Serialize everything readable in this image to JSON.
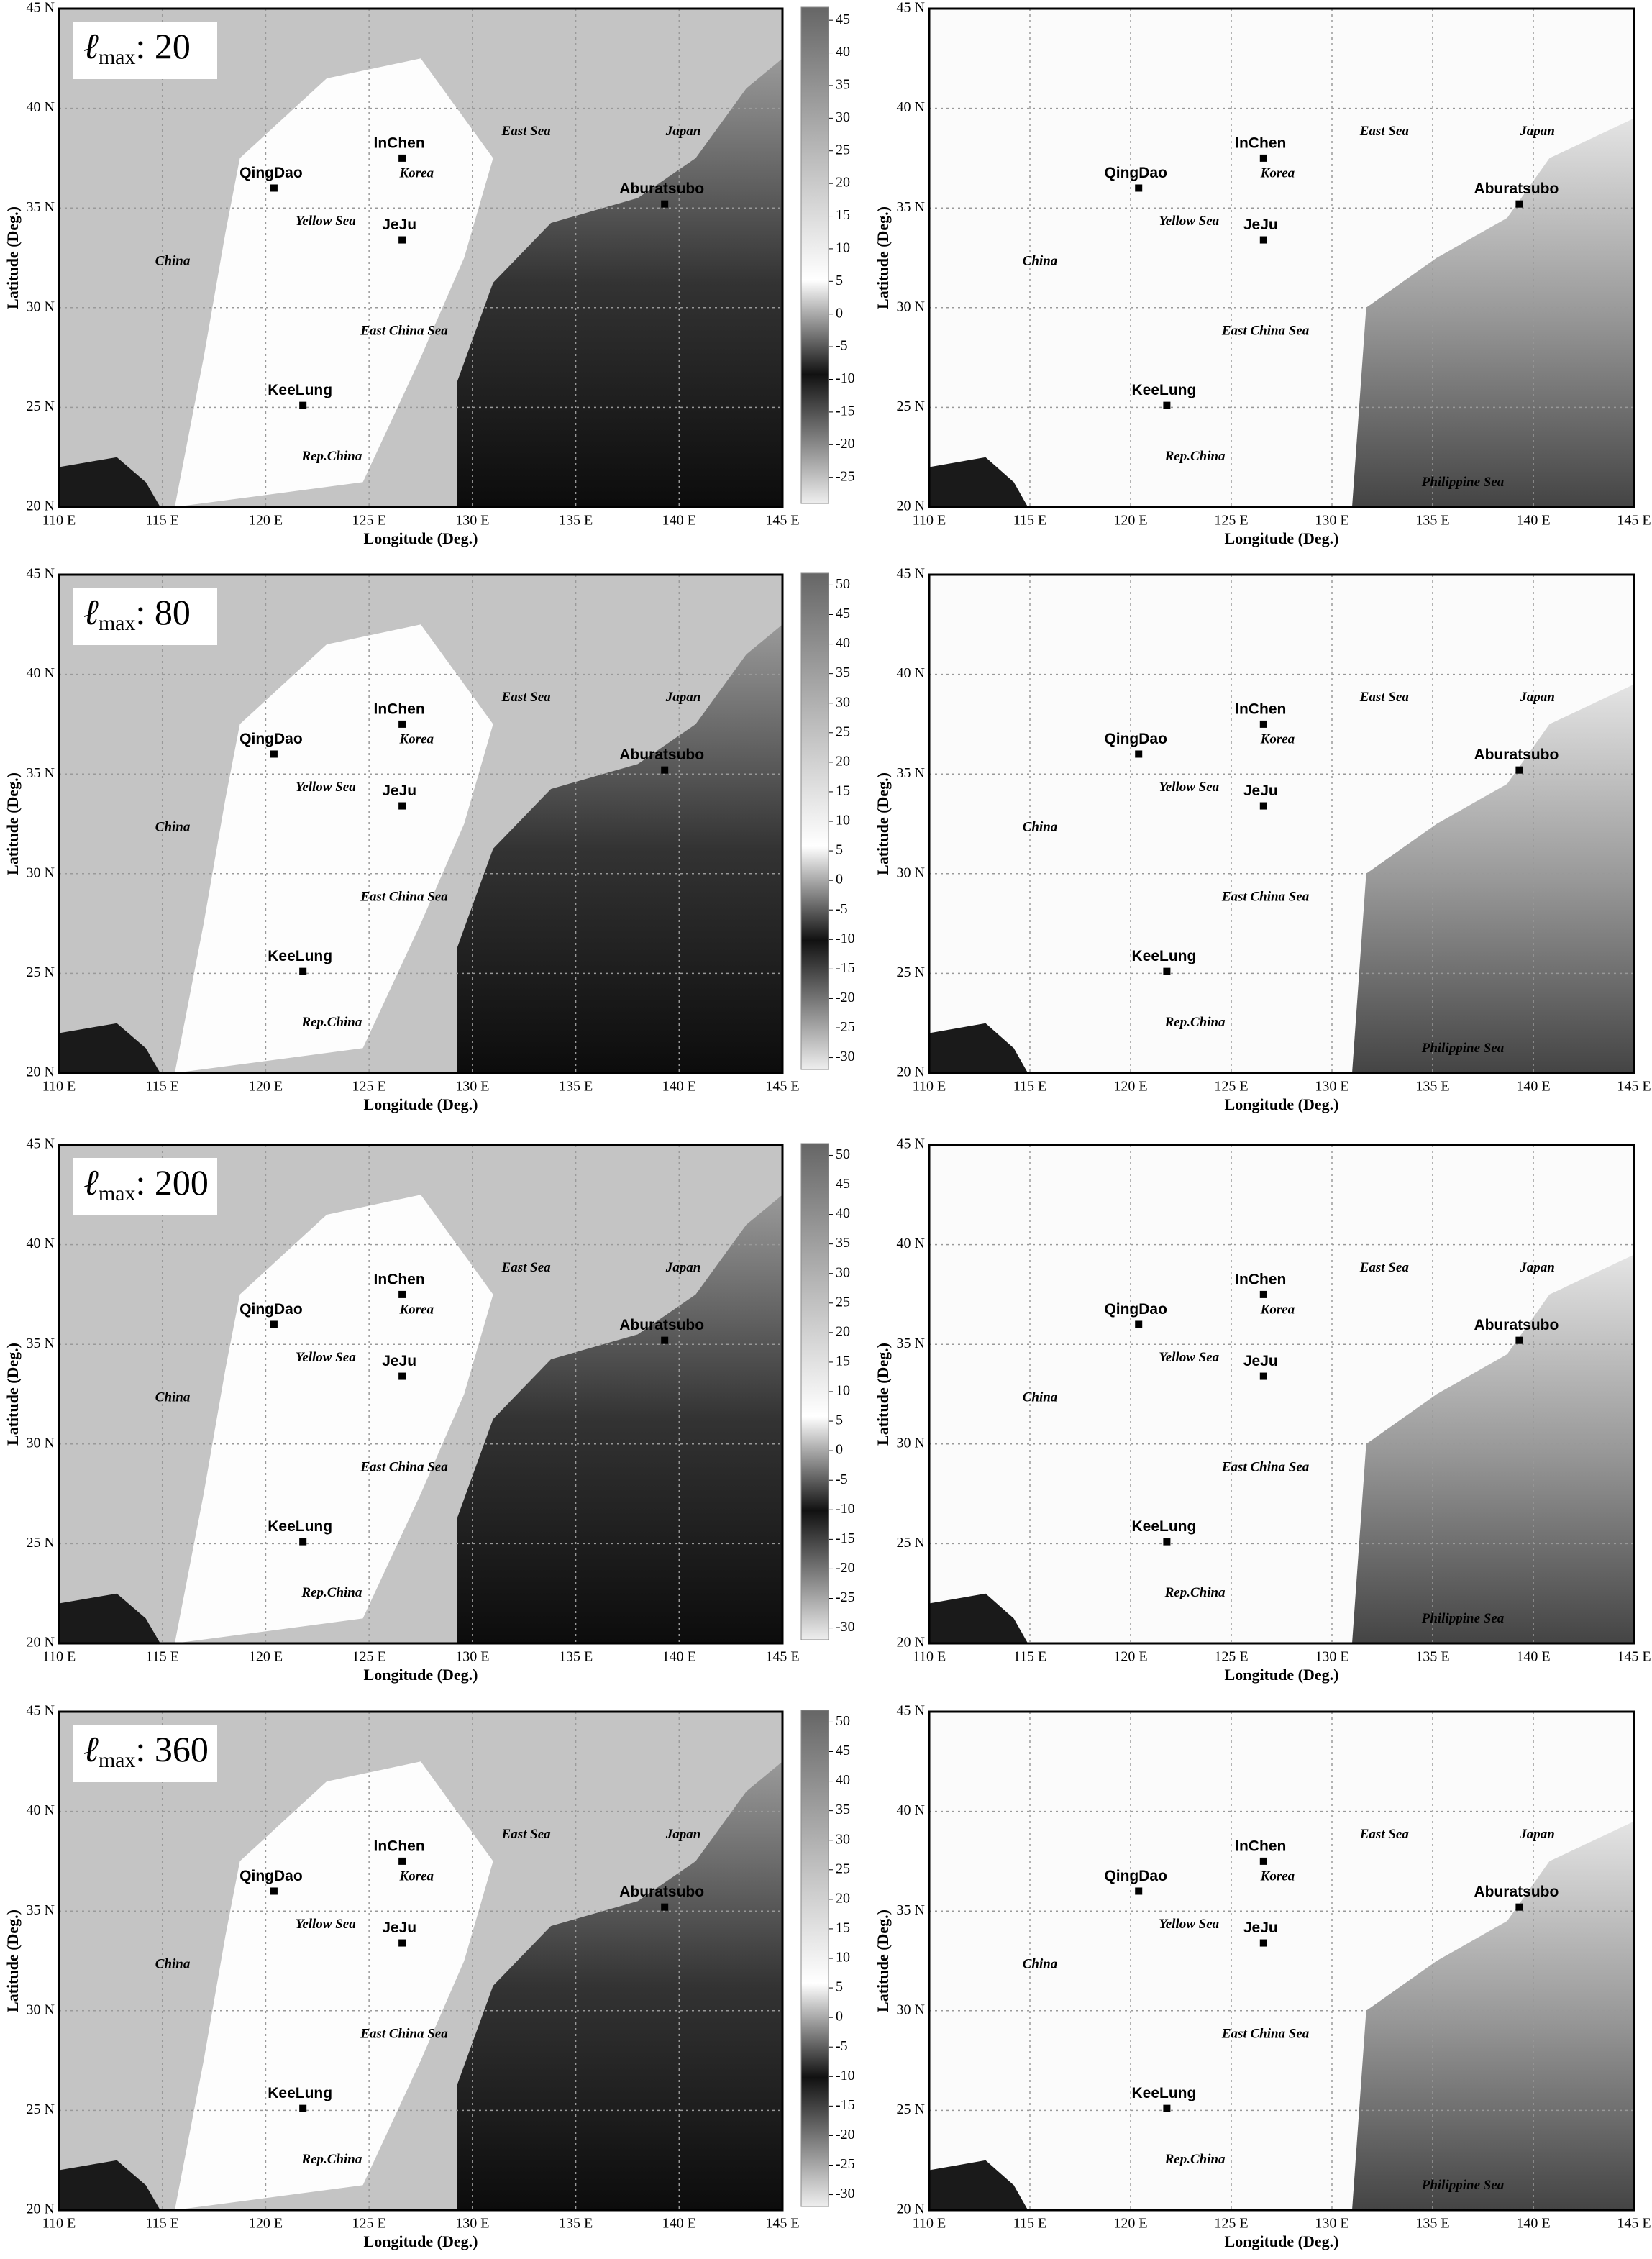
{
  "map": {
    "xlabel": "Longitude (Deg.)",
    "ylabel": "Latitude (Deg.)",
    "xlim": [
      110,
      145
    ],
    "ylim": [
      20,
      45
    ],
    "xticks": [
      {
        "value": 110,
        "label": "110 E"
      },
      {
        "value": 115,
        "label": "115 E"
      },
      {
        "value": 120,
        "label": "120 E"
      },
      {
        "value": 125,
        "label": "125 E"
      },
      {
        "value": 130,
        "label": "130 E"
      },
      {
        "value": 135,
        "label": "135 E"
      },
      {
        "value": 140,
        "label": "140 E"
      },
      {
        "value": 145,
        "label": "145 E"
      }
    ],
    "yticks": [
      {
        "value": 20,
        "label": "20 N"
      },
      {
        "value": 25,
        "label": "25 N"
      },
      {
        "value": 30,
        "label": "30 N"
      },
      {
        "value": 35,
        "label": "35 N"
      },
      {
        "value": 40,
        "label": "40 N"
      },
      {
        "value": 45,
        "label": "45 N"
      }
    ],
    "stations": [
      {
        "name": "InChen",
        "lon": 126.6,
        "lat": 37.5
      },
      {
        "name": "QingDao",
        "lon": 120.4,
        "lat": 36.0
      },
      {
        "name": "JeJu",
        "lon": 126.6,
        "lat": 33.4
      },
      {
        "name": "Aburatsubo",
        "lon": 139.3,
        "lat": 35.2
      },
      {
        "name": "KeeLung",
        "lon": 121.8,
        "lat": 25.1
      }
    ],
    "places": [
      {
        "name": "Korea",
        "lon": 127.3,
        "lat": 36.7
      },
      {
        "name": "Yellow Sea",
        "lon": 122.9,
        "lat": 34.3
      },
      {
        "name": "China",
        "lon": 115.5,
        "lat": 32.3
      },
      {
        "name": "East Sea",
        "lon": 132.6,
        "lat": 38.8
      },
      {
        "name": "Japan",
        "lon": 140.2,
        "lat": 38.8
      },
      {
        "name": "East China Sea",
        "lon": 126.7,
        "lat": 28.8
      },
      {
        "name": "Rep.China",
        "lon": 123.2,
        "lat": 22.5
      }
    ],
    "right_places": [
      {
        "name": "Philippine Sea",
        "lon": 136.5,
        "lat": 21.2
      }
    ]
  },
  "rows": [
    {
      "lmax": {
        "symbol": "ℓ",
        "subscript": "max",
        "text": ": 20"
      },
      "colorbar": {
        "lim": [
          -29,
          47
        ],
        "ticks": [
          45,
          40,
          35,
          30,
          25,
          20,
          15,
          10,
          5,
          0,
          -5,
          -10,
          -15,
          -20,
          -25
        ]
      }
    },
    {
      "lmax": {
        "symbol": "ℓ",
        "subscript": "max",
        "text": ": 80"
      },
      "colorbar": {
        "lim": [
          -32,
          52
        ],
        "ticks": [
          50,
          45,
          40,
          35,
          30,
          25,
          20,
          15,
          10,
          5,
          0,
          -5,
          -10,
          -15,
          -20,
          -25,
          -30
        ]
      }
    },
    {
      "lmax": {
        "symbol": "ℓ",
        "subscript": "max",
        "text": ": 200"
      },
      "colorbar": {
        "lim": [
          -32,
          52
        ],
        "ticks": [
          50,
          45,
          40,
          35,
          30,
          25,
          20,
          15,
          10,
          5,
          0,
          -5,
          -10,
          -15,
          -20,
          -25,
          -30
        ]
      }
    },
    {
      "lmax": {
        "symbol": "ℓ",
        "subscript": "max",
        "text": ": 360"
      },
      "colorbar": {
        "lim": [
          -32,
          52
        ],
        "ticks": [
          50,
          45,
          40,
          35,
          30,
          25,
          20,
          15,
          10,
          5,
          0,
          -5,
          -10,
          -15,
          -20,
          -25,
          -30
        ]
      }
    }
  ]
}
